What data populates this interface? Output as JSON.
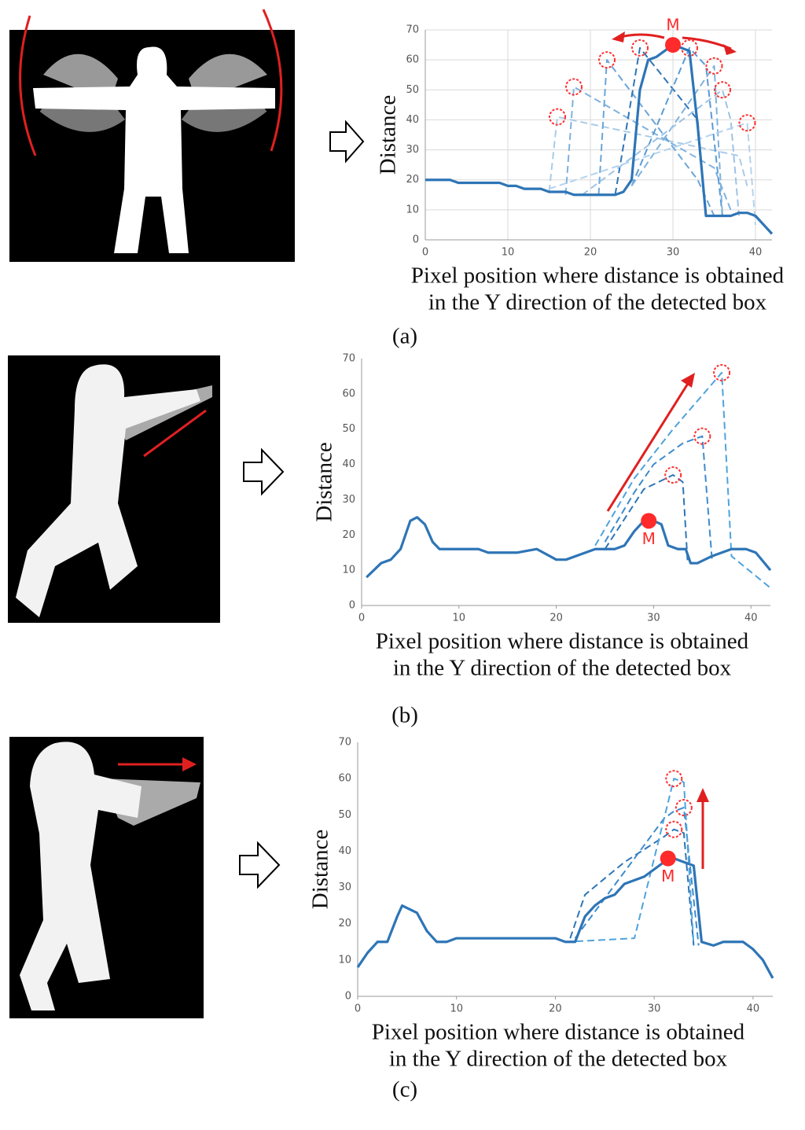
{
  "chart_data": [
    {
      "type": "line",
      "ylabel": "Distance",
      "xlabel": [
        "Pixel position where distance is obtained",
        "in the Y direction of the detected box"
      ],
      "caption": "(a)",
      "xlim": [
        0,
        42
      ],
      "ylim": [
        0,
        70
      ],
      "xticks": [
        0,
        10,
        20,
        30,
        40
      ],
      "yticks": [
        0,
        10,
        20,
        30,
        40,
        50,
        60,
        70
      ],
      "grid": true,
      "highlight": {
        "label": "M",
        "x": 30,
        "y": 65,
        "color": "#ff2a2a"
      },
      "series": [
        {
          "color": "#a9cbe8",
          "dashed": true,
          "circled": true,
          "x": [
            15,
            16,
            38,
            39
          ],
          "values": [
            16,
            41,
            28,
            18
          ]
        },
        {
          "color": "#7fb2de",
          "dashed": true,
          "circled": true,
          "x": [
            17,
            18,
            35,
            37
          ],
          "values": [
            15,
            51,
            24,
            10
          ]
        },
        {
          "color": "#6aa5d8",
          "dashed": true,
          "circled": true,
          "x": [
            21,
            22,
            33,
            35
          ],
          "values": [
            15,
            60,
            20,
            8
          ]
        },
        {
          "color": "#2e75b6",
          "dashed": true,
          "circled": true,
          "x": [
            23,
            26,
            33,
            34
          ],
          "values": [
            15,
            64,
            40,
            8
          ]
        },
        {
          "color": "#5b9bd5",
          "dashed": true,
          "circled": true,
          "x": [
            25,
            32,
            34,
            36
          ],
          "values": [
            18,
            64,
            58,
            8
          ]
        },
        {
          "color": "#7fb2de",
          "dashed": true,
          "circled": true,
          "x": [
            25,
            35,
            36
          ],
          "values": [
            18,
            58,
            8
          ]
        },
        {
          "color": "#9dc3e6",
          "dashed": true,
          "circled": true,
          "x": [
            19,
            36,
            37,
            38
          ],
          "values": [
            15,
            50,
            40,
            8
          ]
        },
        {
          "color": "#b4d3ee",
          "dashed": true,
          "circled": true,
          "x": [
            15,
            39,
            40
          ],
          "values": [
            17,
            39,
            5
          ]
        },
        {
          "color": "#2e75b6",
          "dashed": false,
          "circled": false,
          "x": [
            0,
            3,
            4,
            9,
            10,
            11,
            12,
            14,
            15,
            17,
            18,
            23,
            24,
            25,
            26,
            27,
            28,
            29,
            30,
            31,
            32,
            33,
            34,
            37,
            38,
            39,
            40,
            41,
            42
          ],
          "values": [
            20,
            20,
            19,
            19,
            18,
            18,
            17,
            17,
            16,
            16,
            15,
            15,
            16,
            20,
            50,
            60,
            61,
            63,
            65,
            64,
            63,
            38,
            8,
            8,
            9,
            9,
            8,
            5,
            2
          ]
        }
      ]
    },
    {
      "type": "line",
      "ylabel": "Distance",
      "xlabel": [
        "Pixel position where distance is obtained",
        "in the Y direction of the detected box"
      ],
      "caption": "(b)",
      "xlim": [
        0,
        42
      ],
      "ylim": [
        0,
        70
      ],
      "xticks": [
        0,
        10,
        20,
        30,
        40
      ],
      "yticks": [
        0,
        10,
        20,
        30,
        40,
        50,
        60,
        70
      ],
      "grid": false,
      "highlight": {
        "label": "M",
        "x": 29.5,
        "y": 24,
        "color": "#ff2a2a"
      },
      "series": [
        {
          "color": "#2e75b6",
          "dashed": true,
          "circled": true,
          "x": [
            25,
            29,
            32,
            33,
            33.5
          ],
          "values": [
            16,
            33,
            37,
            35,
            12
          ]
        },
        {
          "color": "#3d8bcd",
          "dashed": true,
          "circled": true,
          "x": [
            25,
            28,
            30,
            33,
            35,
            36
          ],
          "values": [
            18,
            32,
            40,
            46,
            48,
            13
          ]
        },
        {
          "color": "#4ea3dc",
          "dashed": true,
          "circled": true,
          "x": [
            24,
            28,
            32,
            37,
            38,
            42
          ],
          "values": [
            17,
            36,
            50,
            66,
            14,
            5
          ]
        },
        {
          "color": "#2e75b6",
          "dashed": false,
          "circled": false,
          "x": [
            0.5,
            2,
            3,
            4,
            5,
            5.7,
            6.5,
            7.3,
            8,
            9,
            12,
            13,
            16,
            18,
            20,
            21,
            23,
            24,
            26,
            27,
            28,
            29,
            30,
            30.8,
            31.5,
            32.5,
            33.3,
            33.8,
            34.5,
            36,
            38,
            39.5,
            40.5,
            42
          ],
          "values": [
            8,
            12,
            13,
            16,
            24,
            25,
            23,
            18,
            16,
            16,
            16,
            15,
            15,
            16,
            13,
            13,
            15,
            16,
            16,
            17,
            21,
            24,
            24,
            23,
            17,
            16,
            16,
            12,
            12,
            14,
            16,
            16,
            15,
            10
          ]
        }
      ]
    },
    {
      "type": "line",
      "ylabel": "Distance",
      "xlabel": [
        "Pixel position where distance is obtained",
        "in the Y direction of the detected box"
      ],
      "caption": "(c)",
      "xlim": [
        0,
        42
      ],
      "ylim": [
        0,
        70
      ],
      "xticks": [
        0,
        10,
        20,
        30,
        40
      ],
      "yticks": [
        0,
        10,
        20,
        30,
        40,
        50,
        60,
        70
      ],
      "grid": false,
      "highlight": {
        "label": "M",
        "x": 31.4,
        "y": 38,
        "color": "#ff2a2a"
      },
      "series": [
        {
          "color": "#2e75b6",
          "dashed": true,
          "circled": true,
          "x": [
            21.5,
            23,
            27,
            31,
            32,
            33,
            34
          ],
          "values": [
            16,
            28,
            37,
            44,
            46,
            45,
            14
          ]
        },
        {
          "color": "#3d8bcd",
          "dashed": true,
          "circled": true,
          "x": [
            22,
            31,
            32,
            33,
            34.5
          ],
          "values": [
            16,
            49,
            51,
            52,
            14
          ]
        },
        {
          "color": "#4ea3dc",
          "dashed": true,
          "circled": true,
          "x": [
            21,
            28,
            32,
            33,
            34
          ],
          "values": [
            15,
            16,
            60,
            59,
            14
          ]
        },
        {
          "color": "#2e75b6",
          "dashed": false,
          "circled": false,
          "x": [
            0,
            1,
            2,
            3,
            4,
            4.5,
            6,
            7,
            8,
            9,
            10,
            20,
            21,
            22,
            23,
            24,
            25,
            26,
            27,
            28,
            29,
            30,
            31,
            32,
            33,
            34,
            34.8,
            36,
            37,
            39,
            40,
            41,
            42
          ],
          "values": [
            8,
            12,
            15,
            15,
            22,
            25,
            23,
            18,
            15,
            15,
            16,
            16,
            15,
            15,
            22,
            25,
            27,
            28,
            31,
            32,
            33,
            35,
            37,
            38,
            37,
            36,
            15,
            14,
            15,
            15,
            13,
            10,
            5
          ]
        }
      ]
    }
  ]
}
